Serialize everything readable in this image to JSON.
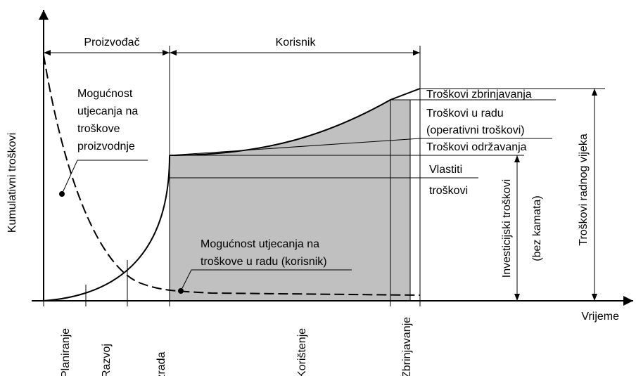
{
  "axes": {
    "y_label": "Kumulativni troškovi",
    "x_label": "Vrijeme"
  },
  "headers": {
    "producer": "Proizvođač",
    "user": "Korisnik"
  },
  "annotations": {
    "production_influence": [
      "Mogućnost",
      "utjecanja na",
      "troškove",
      "proizvodnje"
    ],
    "operation_influence": [
      "Mogućnost utjecanja na",
      "troškove u radu (korisnik)"
    ]
  },
  "cost_labels": {
    "disposal": "Troškovi zbrinjavanja",
    "operation": "Troškovi u radu",
    "operation_note": "(operativni troškovi)",
    "maintenance": "Troškovi održavanja",
    "own_1": "Vlastiti",
    "own_2": "troškovi"
  },
  "investment": [
    "Investicijski troškovi",
    "(bez kamata)"
  ],
  "lifetime": "Troškovi radnog vijeka",
  "phases": [
    "Planiranje",
    "Razvoj",
    "Izrada",
    "Korištenje",
    "Zbrinjavanje"
  ]
}
